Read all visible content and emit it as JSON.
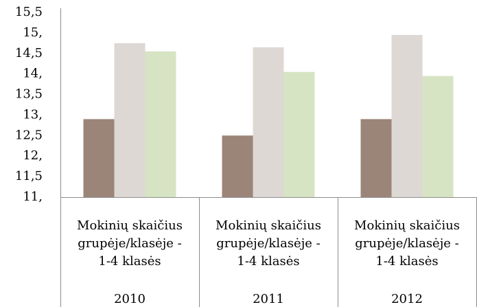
{
  "chart_data": {
    "type": "bar",
    "categories": [
      "2010",
      "2011",
      "2012"
    ],
    "subcategory_labels": [
      [
        "Mokinių skaičius",
        "grupėje/klasėje -",
        "1-4 klasės"
      ],
      [
        "Mokinių skaičius",
        "grupėje/klasėje -",
        "1-4 klasės"
      ],
      [
        "Mokinių skaičius",
        "grupėje/klasėje -",
        "1-4 klasės"
      ]
    ],
    "series": [
      {
        "color": "#9b8578",
        "values": [
          12.9,
          12.5,
          12.9
        ]
      },
      {
        "color": "#ddd8d4",
        "values": [
          14.75,
          14.65,
          14.95
        ]
      },
      {
        "color": "#d7e4c4",
        "values": [
          14.55,
          14.05,
          13.95
        ]
      }
    ],
    "ylim": [
      11,
      15.5
    ],
    "yticks": [
      {
        "value": 11,
        "label": "11,"
      },
      {
        "value": 11.5,
        "label": "11,5"
      },
      {
        "value": 12,
        "label": "12,"
      },
      {
        "value": 12.5,
        "label": "12,5"
      },
      {
        "value": 13,
        "label": "13,"
      },
      {
        "value": 13.5,
        "label": "13,5"
      },
      {
        "value": 14,
        "label": "14,"
      },
      {
        "value": 14.5,
        "label": "14,5"
      },
      {
        "value": 15,
        "label": "15,"
      },
      {
        "value": 15.5,
        "label": "15,5"
      }
    ],
    "grid": false
  }
}
